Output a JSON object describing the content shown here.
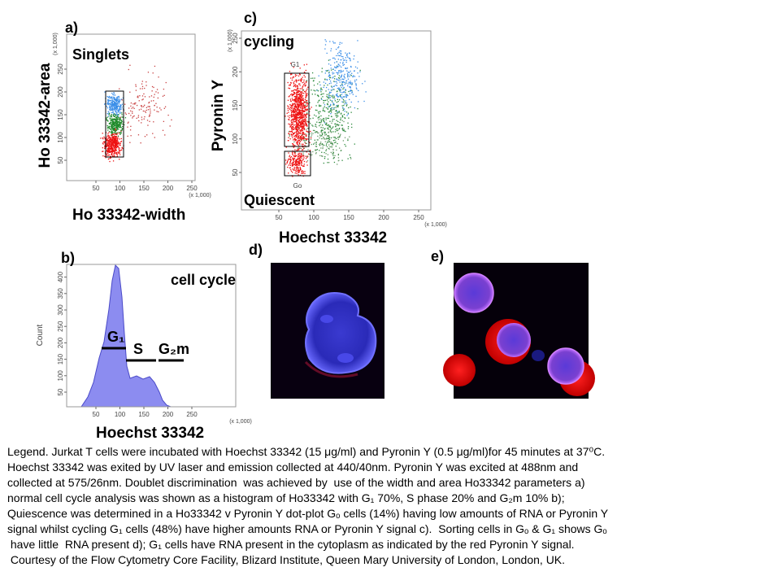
{
  "panels": {
    "a": {
      "label": "a)",
      "title": "Singlets",
      "xlabel": "Ho 33342-width",
      "ylabel": "Ho 33342-area",
      "xticks": [
        "50",
        "100",
        "150",
        "200",
        "250"
      ],
      "yticks": [
        "50",
        "100",
        "150",
        "200",
        "250"
      ],
      "xunit": "(x 1,000)",
      "yunit": "(x 1,000)"
    },
    "b": {
      "label": "b)",
      "title": "cell cycle",
      "xlabel": "Hoechst 33342",
      "ylabel": "Count",
      "xticks": [
        "50",
        "100",
        "150",
        "200",
        "250"
      ],
      "yticks": [
        "50",
        "100",
        "150",
        "200",
        "250",
        "300",
        "350",
        "400"
      ],
      "xunit": "(x 1,000)",
      "phases": [
        "G₁",
        "S",
        "G₂m"
      ]
    },
    "c": {
      "label": "c)",
      "top": "cycling",
      "bottom": "Quiescent",
      "xlabel": "Hoechst 33342",
      "ylabel": "Pyronin Y",
      "xticks": [
        "50",
        "100",
        "150",
        "200",
        "250"
      ],
      "yticks": [
        "50",
        "100",
        "150",
        "200",
        "250"
      ],
      "xunit": "(x 1,000)",
      "yunit": "(x 1,000)",
      "gates": [
        "G1",
        "Go"
      ]
    },
    "d": {
      "label": "d)"
    },
    "e": {
      "label": "e)"
    }
  },
  "legend": [
    "Legend. Jurkat T cells were incubated with Hoechst 33342 (15 μg/ml) and Pyronin Y (0.5 μg/ml)for 45 minutes at 37⁰C.",
    "Hoechst 33342 was exited by UV laser and emission collected at 440/40nm. Pyronin Y was excited at 488nm and",
    "collected at 575/26nm. Doublet discrimination  was achieved by  use of the width and area Ho33342 parameters a)",
    "normal cell cycle analysis was shown as a histogram of Ho33342 with G₁ 70%, S phase 20% and G₂m 10% b);",
    "Quiescence was determined in a Ho33342 v Pyronin Y dot-plot Gₒ cells (14%) having low amounts of RNA or Pyronin Y",
    "signal whilst cycling G₁ cells (48%) have higher amounts RNA or Pyronin Y signal c).  Sorting cells in Gₒ & G₁ shows Gₒ",
    " have little  RNA present d); G₁ cells have RNA present in the cytoplasm as indicated by the red Pyronin Y signal.",
    " Courtesy of the Flow Cytometry Core Facility, Blizard Institute, Queen Mary University of London, London, UK."
  ]
}
